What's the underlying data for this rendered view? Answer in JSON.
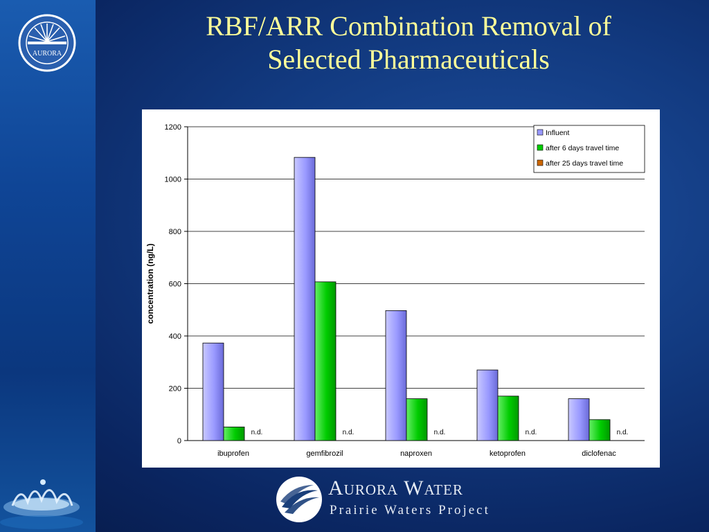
{
  "slide": {
    "title_line1": "RBF/ARR Combination Removal of",
    "title_line2": "Selected Pharmaceuticals",
    "title_color": "#ffff99"
  },
  "logo": {
    "text": "AURORA"
  },
  "footer": {
    "brand": "Aurora Water",
    "subtitle": "Prairie Waters Project"
  },
  "chart_data": {
    "type": "bar",
    "title": "",
    "xlabel": "",
    "ylabel": "concentration (ng/L)",
    "ylim": [
      0,
      1200
    ],
    "yticks": [
      0,
      200,
      400,
      600,
      800,
      1000,
      1200
    ],
    "categories": [
      "ibuprofen",
      "gemfibrozil",
      "naproxen",
      "ketoprofen",
      "diclofenac"
    ],
    "series": [
      {
        "name": "Influent",
        "color": "#9999ff",
        "values": [
          373,
          1083,
          497,
          270,
          160
        ]
      },
      {
        "name": "after 6 days travel time",
        "color": "#00cc00",
        "values": [
          52,
          607,
          160,
          170,
          80
        ]
      },
      {
        "name": "after 25 days travel time",
        "color": "#cc6600",
        "values": [
          null,
          null,
          null,
          null,
          null
        ]
      }
    ],
    "annotations": [
      "n.d.",
      "n.d.",
      "n.d.",
      "n.d.",
      "n.d."
    ],
    "grid": true,
    "legend_position": "top-right"
  }
}
